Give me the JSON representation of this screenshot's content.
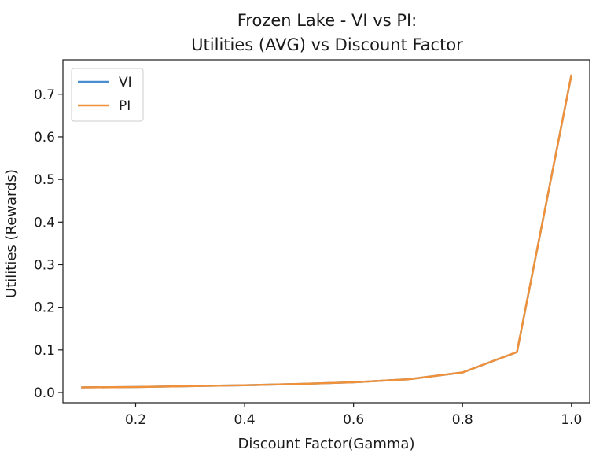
{
  "chart_data": {
    "type": "line",
    "title_lines": [
      "Frozen Lake - VI vs PI:",
      "Utilities (AVG) vs Discount Factor"
    ],
    "xlabel": "Discount Factor(Gamma)",
    "ylabel": "Utilities (Rewards)",
    "xlim": [
      0.0665,
      1.0335
    ],
    "ylim": [
      -0.024,
      0.7808
    ],
    "x_ticks": [
      0.2,
      0.4,
      0.6,
      0.8,
      1.0
    ],
    "x_tick_labels": [
      "0.2",
      "0.4",
      "0.6",
      "0.8",
      "1.0"
    ],
    "y_ticks": [
      0.0,
      0.1,
      0.2,
      0.3,
      0.4,
      0.5,
      0.6,
      0.7
    ],
    "y_tick_labels": [
      "0.0",
      "0.1",
      "0.2",
      "0.3",
      "0.4",
      "0.5",
      "0.6",
      "0.7"
    ],
    "grid": false,
    "legend_position": "top-left",
    "x": [
      0.1,
      0.2,
      0.3,
      0.4,
      0.5,
      0.6,
      0.7,
      0.8,
      0.9,
      1.0
    ],
    "series": [
      {
        "name": "VI",
        "color": "#4a8ecf",
        "values": [
          0.012,
          0.013,
          0.015,
          0.017,
          0.02,
          0.024,
          0.031,
          0.047,
          0.095,
          0.746
        ]
      },
      {
        "name": "PI",
        "color": "#f0913a",
        "values": [
          0.012,
          0.013,
          0.015,
          0.017,
          0.02,
          0.024,
          0.031,
          0.047,
          0.095,
          0.746
        ]
      }
    ]
  }
}
